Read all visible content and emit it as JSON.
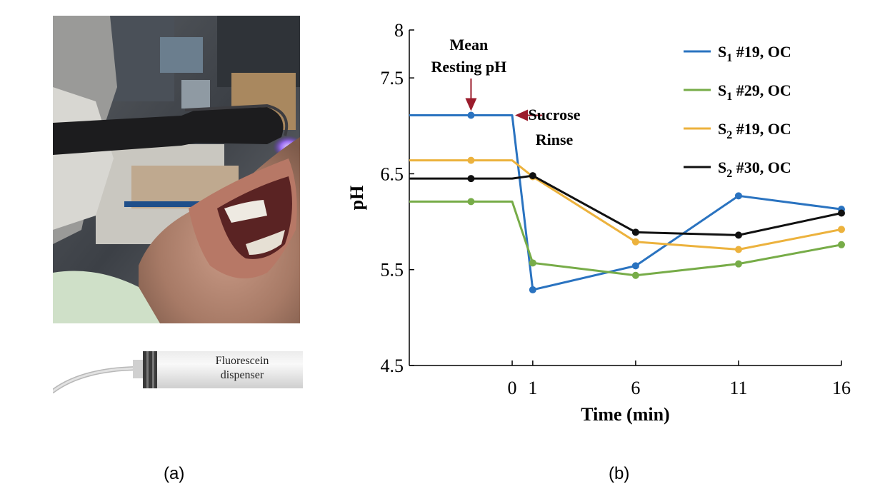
{
  "figure": {
    "panel_a_caption": "(a)",
    "panel_b_caption": "(b)",
    "dispenser_label_line1": "Fluorescein",
    "dispenser_label_line2": "dispenser"
  },
  "chart_data": {
    "type": "line",
    "title": "",
    "xlabel": "Time (min)",
    "ylabel": "pH",
    "xlim": [
      -5,
      16
    ],
    "ylim": [
      4.5,
      8
    ],
    "xticks": [
      0,
      1,
      6,
      11,
      16
    ],
    "xtick_labels": [
      "0",
      "1",
      "6",
      "11",
      "16"
    ],
    "yticks": [
      4.5,
      5.5,
      6.5,
      7.5,
      8
    ],
    "ytick_labels": [
      "4.5",
      "5.5",
      "6.5",
      "7.5",
      "8"
    ],
    "grid": false,
    "legend_position": "top-right",
    "series": [
      {
        "label_main": "S",
        "label_sub": "1",
        "label_rest": " #19, OC",
        "color": "#2a73c0",
        "line_x": [
          -5,
          0,
          1,
          6,
          11,
          16
        ],
        "line_y": [
          7.11,
          7.11,
          5.29,
          5.54,
          6.27,
          6.13
        ],
        "marker_x": [
          -2,
          1,
          6,
          11,
          16
        ],
        "marker_y": [
          7.11,
          5.29,
          5.54,
          6.27,
          6.13
        ]
      },
      {
        "label_main": "S",
        "label_sub": "1",
        "label_rest": " #29, OC",
        "color": "#77ac48",
        "line_x": [
          -5,
          0,
          1,
          6,
          11,
          16
        ],
        "line_y": [
          6.21,
          6.21,
          5.57,
          5.44,
          5.56,
          5.76
        ],
        "marker_x": [
          -2,
          1,
          6,
          11,
          16
        ],
        "marker_y": [
          6.21,
          5.57,
          5.44,
          5.56,
          5.76
        ]
      },
      {
        "label_main": "S",
        "label_sub": "2",
        "label_rest": " #19, OC",
        "color": "#ecb23d",
        "line_x": [
          -5,
          0,
          1,
          6,
          11,
          16
        ],
        "line_y": [
          6.64,
          6.64,
          6.47,
          5.79,
          5.71,
          5.92
        ],
        "marker_x": [
          -2,
          1,
          6,
          11,
          16
        ],
        "marker_y": [
          6.64,
          6.47,
          5.79,
          5.71,
          5.92
        ]
      },
      {
        "label_main": "S",
        "label_sub": "2",
        "label_rest": " #30, OC",
        "color": "#111111",
        "line_x": [
          -5,
          0,
          1,
          6,
          11,
          16
        ],
        "line_y": [
          6.45,
          6.45,
          6.48,
          5.89,
          5.86,
          6.09
        ],
        "marker_x": [
          -2,
          1,
          6,
          11,
          16
        ],
        "marker_y": [
          6.45,
          6.48,
          5.89,
          5.86,
          6.09
        ]
      }
    ],
    "annotations": [
      {
        "lines": [
          "Mean",
          "Resting pH"
        ]
      },
      {
        "lines": [
          "Sucrose",
          "Rinse"
        ]
      }
    ]
  }
}
